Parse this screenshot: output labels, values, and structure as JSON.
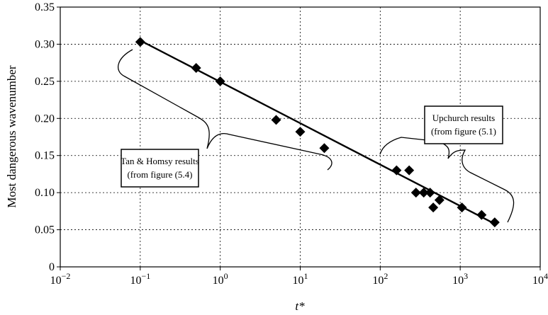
{
  "chart_data": {
    "type": "scatter",
    "xlabel": "t*",
    "ylabel": "Most dangerous wavenumber",
    "x_scale": "log",
    "xlim": [
      0.01,
      10000
    ],
    "ylim": [
      0,
      0.35
    ],
    "grid": true,
    "x_ticks": [
      {
        "value": 0.01,
        "base": "10",
        "exp": "−2"
      },
      {
        "value": 0.1,
        "base": "10",
        "exp": "−1"
      },
      {
        "value": 1,
        "base": "10",
        "exp": "0"
      },
      {
        "value": 10,
        "base": "10",
        "exp": "1"
      },
      {
        "value": 100,
        "base": "10",
        "exp": "2"
      },
      {
        "value": 1000,
        "base": "10",
        "exp": "3"
      },
      {
        "value": 10000,
        "base": "10",
        "exp": "4"
      }
    ],
    "y_ticks": [
      {
        "value": 0,
        "label": "0"
      },
      {
        "value": 0.05,
        "label": "0.05"
      },
      {
        "value": 0.1,
        "label": "0.10"
      },
      {
        "value": 0.15,
        "label": "0.15"
      },
      {
        "value": 0.2,
        "label": "0.20"
      },
      {
        "value": 0.25,
        "label": "0.25"
      },
      {
        "value": 0.3,
        "label": "0.30"
      },
      {
        "value": 0.35,
        "label": "0.35"
      }
    ],
    "series": [
      {
        "marker": "diamond",
        "color": "#000000",
        "points": [
          {
            "x": 0.1,
            "y": 0.303
          },
          {
            "x": 0.5,
            "y": 0.268
          },
          {
            "x": 1,
            "y": 0.25
          },
          {
            "x": 5,
            "y": 0.198
          },
          {
            "x": 10,
            "y": 0.182
          },
          {
            "x": 20,
            "y": 0.16
          },
          {
            "x": 160,
            "y": 0.13
          },
          {
            "x": 230,
            "y": 0.13
          },
          {
            "x": 280,
            "y": 0.1
          },
          {
            "x": 350,
            "y": 0.1
          },
          {
            "x": 420,
            "y": 0.1
          },
          {
            "x": 460,
            "y": 0.08
          },
          {
            "x": 550,
            "y": 0.09
          },
          {
            "x": 1050,
            "y": 0.08
          },
          {
            "x": 1850,
            "y": 0.07
          },
          {
            "x": 2700,
            "y": 0.06
          }
        ]
      }
    ],
    "trendline": [
      {
        "x": 0.1,
        "y": 0.305
      },
      {
        "x": 2700,
        "y": 0.058
      }
    ],
    "annotations": [
      {
        "lines": [
          "Tan & Homsy results",
          "(from figure (5.4)"
        ]
      },
      {
        "lines": [
          "Upchurch results",
          "(from figure (5.1)"
        ]
      }
    ]
  }
}
